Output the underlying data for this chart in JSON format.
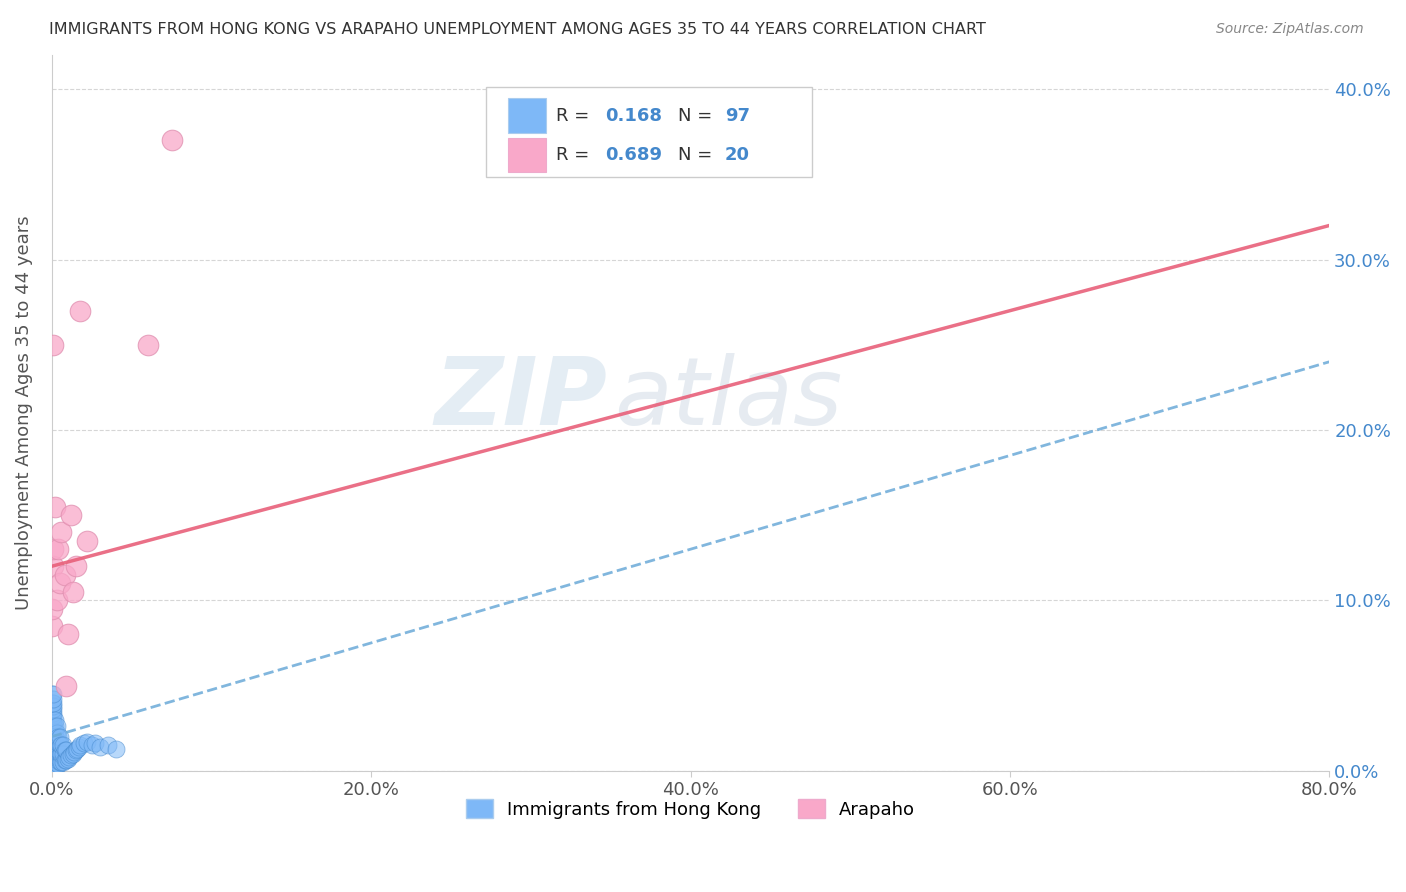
{
  "title": "IMMIGRANTS FROM HONG KONG VS ARAPAHO UNEMPLOYMENT AMONG AGES 35 TO 44 YEARS CORRELATION CHART",
  "source": "Source: ZipAtlas.com",
  "ylabel": "Unemployment Among Ages 35 to 44 years",
  "xlabel_ticks": [
    "0.0%",
    "20.0%",
    "40.0%",
    "60.0%",
    "80.0%"
  ],
  "ylabel_ticks_right": [
    "40.0%",
    "30.0%",
    "20.0%",
    "10.0%",
    "0.0%"
  ],
  "xlim": [
    0.0,
    0.8
  ],
  "ylim": [
    0.0,
    0.42
  ],
  "watermark_line1": "ZIP",
  "watermark_line2": "atlas",
  "legend_R1": "0.168",
  "legend_N1": "97",
  "legend_R2": "0.689",
  "legend_N2": "20",
  "series1_color": "#7eb8f7",
  "series2_color": "#f9a8c9",
  "series1_label": "Immigrants from Hong Kong",
  "series2_label": "Arapaho",
  "trend1_color": "#6baad8",
  "trend2_color": "#e8607a",
  "trend1_x0": 0.0,
  "trend1_y0": 0.02,
  "trend1_x1": 0.8,
  "trend1_y1": 0.24,
  "trend2_x0": 0.0,
  "trend2_y0": 0.12,
  "trend2_x1": 0.8,
  "trend2_y1": 0.32,
  "blue_dots_x": [
    0.0,
    0.0,
    0.0,
    0.0,
    0.0,
    0.0,
    0.0,
    0.0,
    0.0,
    0.0,
    0.0,
    0.0,
    0.0,
    0.0,
    0.0,
    0.0,
    0.0,
    0.0,
    0.0,
    0.0,
    0.0,
    0.0,
    0.0,
    0.001,
    0.001,
    0.001,
    0.001,
    0.001,
    0.001,
    0.001,
    0.001,
    0.001,
    0.001,
    0.001,
    0.001,
    0.001,
    0.001,
    0.001,
    0.001,
    0.001,
    0.001,
    0.001,
    0.001,
    0.001,
    0.001,
    0.002,
    0.002,
    0.002,
    0.002,
    0.002,
    0.002,
    0.002,
    0.002,
    0.002,
    0.002,
    0.003,
    0.003,
    0.003,
    0.003,
    0.003,
    0.003,
    0.003,
    0.004,
    0.004,
    0.004,
    0.004,
    0.004,
    0.005,
    0.005,
    0.005,
    0.005,
    0.006,
    0.006,
    0.006,
    0.007,
    0.007,
    0.007,
    0.008,
    0.008,
    0.009,
    0.009,
    0.01,
    0.011,
    0.012,
    0.013,
    0.014,
    0.015,
    0.016,
    0.017,
    0.018,
    0.02,
    0.022,
    0.025,
    0.027,
    0.03,
    0.035,
    0.04
  ],
  "blue_dots_y": [
    0.0,
    0.002,
    0.003,
    0.005,
    0.006,
    0.007,
    0.008,
    0.01,
    0.012,
    0.014,
    0.015,
    0.017,
    0.018,
    0.02,
    0.022,
    0.024,
    0.026,
    0.028,
    0.03,
    0.032,
    0.035,
    0.04,
    0.045,
    0.002,
    0.004,
    0.006,
    0.008,
    0.01,
    0.012,
    0.014,
    0.016,
    0.018,
    0.02,
    0.022,
    0.024,
    0.026,
    0.028,
    0.03,
    0.032,
    0.034,
    0.036,
    0.038,
    0.04,
    0.042,
    0.045,
    0.002,
    0.005,
    0.008,
    0.011,
    0.014,
    0.017,
    0.02,
    0.023,
    0.026,
    0.03,
    0.003,
    0.006,
    0.01,
    0.014,
    0.018,
    0.022,
    0.026,
    0.004,
    0.008,
    0.012,
    0.016,
    0.02,
    0.005,
    0.01,
    0.015,
    0.02,
    0.005,
    0.01,
    0.015,
    0.005,
    0.01,
    0.015,
    0.006,
    0.012,
    0.006,
    0.012,
    0.007,
    0.008,
    0.009,
    0.01,
    0.011,
    0.012,
    0.013,
    0.014,
    0.015,
    0.016,
    0.017,
    0.015,
    0.016,
    0.014,
    0.015,
    0.013
  ],
  "pink_dots_x": [
    0.0,
    0.0,
    0.001,
    0.001,
    0.001,
    0.002,
    0.003,
    0.004,
    0.005,
    0.006,
    0.008,
    0.009,
    0.01,
    0.012,
    0.013,
    0.015,
    0.018,
    0.022,
    0.06,
    0.075
  ],
  "pink_dots_y": [
    0.085,
    0.095,
    0.12,
    0.13,
    0.25,
    0.155,
    0.1,
    0.13,
    0.11,
    0.14,
    0.115,
    0.05,
    0.08,
    0.15,
    0.105,
    0.12,
    0.27,
    0.135,
    0.25,
    0.37
  ]
}
